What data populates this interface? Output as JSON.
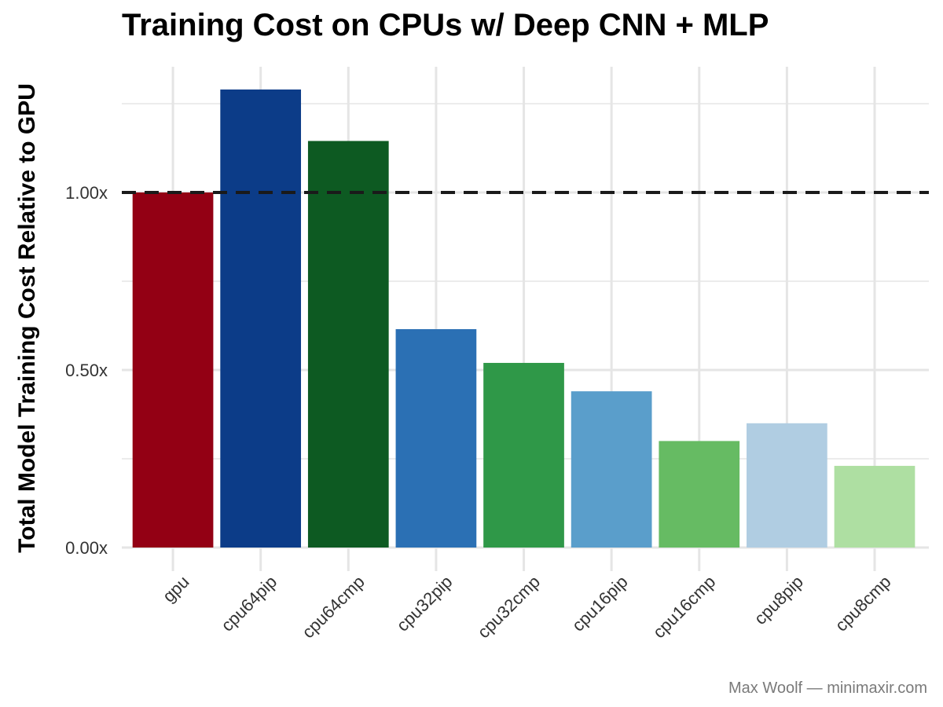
{
  "chart_data": {
    "type": "bar",
    "title": "Training Cost on CPUs w/ Deep CNN + MLP",
    "xlabel": "",
    "ylabel": "Total Model Training Cost Relative to GPU",
    "categories": [
      "gpu",
      "cpu64pip",
      "cpu64cmp",
      "cpu32pip",
      "cpu32cmp",
      "cpu16pip",
      "cpu16cmp",
      "cpu8pip",
      "cpu8cmp"
    ],
    "values": [
      1.0,
      1.29,
      1.145,
      0.615,
      0.52,
      0.44,
      0.3,
      0.35,
      0.23
    ],
    "colors": [
      "#930014",
      "#0c3c88",
      "#0d5a22",
      "#2b70b4",
      "#2f9848",
      "#5a9ecb",
      "#66bb63",
      "#b0cde2",
      "#aedfa2"
    ],
    "ylim": [
      0,
      1.25
    ],
    "yticks": [
      0.0,
      0.5,
      1.0
    ],
    "ytick_labels": [
      "0.00x",
      "0.50x",
      "1.00x"
    ],
    "reference_line": {
      "value": 1.0,
      "style": "dashed",
      "color": "#1a1a1a"
    },
    "grid": true,
    "legend": "none"
  },
  "caption": "Max Woolf — minimaxir.com"
}
